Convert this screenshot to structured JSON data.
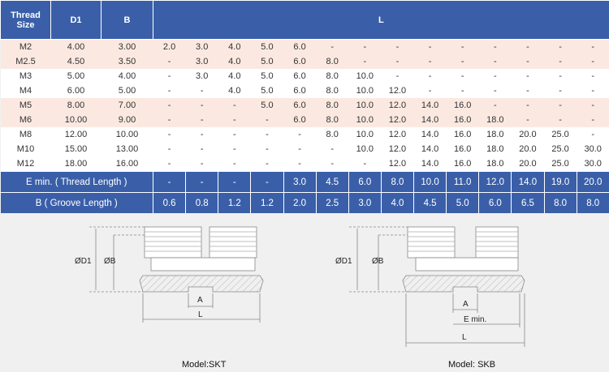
{
  "header": {
    "thread_size": [
      "Thread",
      "Size"
    ],
    "d1": "D1",
    "b": "B",
    "l": "L"
  },
  "rows": [
    {
      "size": "M2",
      "d1": "4.00",
      "b": "3.00",
      "l": [
        "2.0",
        "3.0",
        "4.0",
        "5.0",
        "6.0",
        "-",
        "-",
        "-",
        "-",
        "-",
        "-",
        "-",
        "-",
        "-"
      ],
      "group": 0
    },
    {
      "size": "M2.5",
      "d1": "4.50",
      "b": "3.50",
      "l": [
        "-",
        "3.0",
        "4.0",
        "5.0",
        "6.0",
        "8.0",
        "-",
        "-",
        "-",
        "-",
        "-",
        "-",
        "-",
        "-"
      ],
      "group": 0
    },
    {
      "size": "M3",
      "d1": "5.00",
      "b": "4.00",
      "l": [
        "-",
        "3.0",
        "4.0",
        "5.0",
        "6.0",
        "8.0",
        "10.0",
        "-",
        "-",
        "-",
        "-",
        "-",
        "-",
        "-"
      ],
      "group": 1
    },
    {
      "size": "M4",
      "d1": "6.00",
      "b": "5.00",
      "l": [
        "-",
        "-",
        "4.0",
        "5.0",
        "6.0",
        "8.0",
        "10.0",
        "12.0",
        "-",
        "-",
        "-",
        "-",
        "-",
        "-"
      ],
      "group": 1
    },
    {
      "size": "M5",
      "d1": "8.00",
      "b": "7.00",
      "l": [
        "-",
        "-",
        "-",
        "5.0",
        "6.0",
        "8.0",
        "10.0",
        "12.0",
        "14.0",
        "16.0",
        "-",
        "-",
        "-",
        "-"
      ],
      "group": 0
    },
    {
      "size": "M6",
      "d1": "10.00",
      "b": "9.00",
      "l": [
        "-",
        "-",
        "-",
        "-",
        "6.0",
        "8.0",
        "10.0",
        "12.0",
        "14.0",
        "16.0",
        "18.0",
        "-",
        "-",
        "-"
      ],
      "group": 0
    },
    {
      "size": "M8",
      "d1": "12.00",
      "b": "10.00",
      "l": [
        "-",
        "-",
        "-",
        "-",
        "-",
        "8.0",
        "10.0",
        "12.0",
        "14.0",
        "16.0",
        "18.0",
        "20.0",
        "25.0",
        "-"
      ],
      "group": 1
    },
    {
      "size": "M10",
      "d1": "15.00",
      "b": "13.00",
      "l": [
        "-",
        "-",
        "-",
        "-",
        "-",
        "-",
        "10.0",
        "12.0",
        "14.0",
        "16.0",
        "18.0",
        "20.0",
        "25.0",
        "30.0"
      ],
      "group": 1
    },
    {
      "size": "M12",
      "d1": "18.00",
      "b": "16.00",
      "l": [
        "-",
        "-",
        "-",
        "-",
        "-",
        "-",
        "-",
        "12.0",
        "14.0",
        "16.0",
        "18.0",
        "20.0",
        "25.0",
        "30.0"
      ],
      "group": 1
    }
  ],
  "footer": [
    {
      "label": "E min. ( Thread Length )",
      "values": [
        "-",
        "-",
        "-",
        "-",
        "3.0",
        "4.5",
        "6.0",
        "8.0",
        "10.0",
        "11.0",
        "12.0",
        "14.0",
        "19.0",
        "20.0"
      ]
    },
    {
      "label": "B ( Groove Length )",
      "values": [
        "0.6",
        "0.8",
        "1.2",
        "1.2",
        "2.0",
        "2.5",
        "3.0",
        "4.0",
        "4.5",
        "5.0",
        "6.0",
        "6.5",
        "8.0",
        "8.0"
      ]
    }
  ],
  "drawings": {
    "skt": {
      "caption": "Model:SKT",
      "labels": {
        "d1": "ØD1",
        "b": "ØB",
        "a": "A",
        "l": "L"
      }
    },
    "skb": {
      "caption": "Model:  SKB",
      "labels": {
        "d1": "ØD1",
        "b": "ØB",
        "a": "A",
        "e": "E min.",
        "l": "L"
      }
    }
  }
}
